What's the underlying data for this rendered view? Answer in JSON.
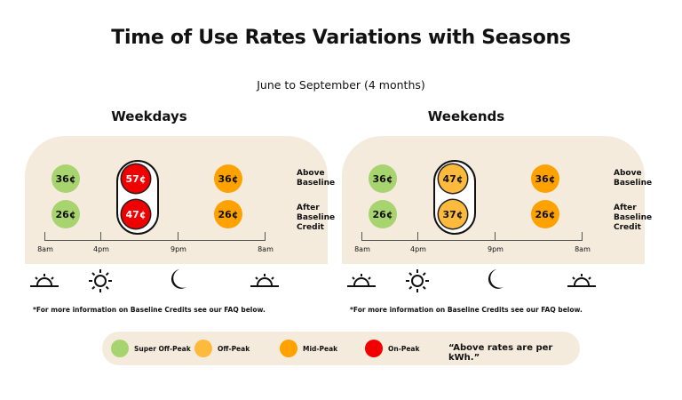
{
  "title": "Time of Use Rates Variations with Seasons",
  "subtitle": "June to September (4 months)",
  "colors": {
    "super_off_peak": "#A8D470",
    "off_peak": "#FDBA3C",
    "mid_peak": "#FFA200",
    "on_peak": "#F00000",
    "panel_bg": "#F5EBDD"
  },
  "row_labels": {
    "above": "Above Baseline",
    "after": "After Baseline Credit"
  },
  "panels": [
    {
      "title": "Weekdays",
      "rates": [
        {
          "period": "super_off_peak",
          "above": "36¢",
          "after": "26¢"
        },
        {
          "period": "on_peak",
          "above": "57¢",
          "after": "47¢"
        },
        {
          "period": "mid_peak",
          "above": "36¢",
          "after": "26¢"
        }
      ],
      "times": [
        "8am",
        "4pm",
        "9pm",
        "8am"
      ],
      "icons": [
        "sunrise-icon",
        "sun-icon",
        "moon-icon",
        "sunrise-icon"
      ],
      "note": "*For more information on Baseline Credits see our FAQ below."
    },
    {
      "title": "Weekends",
      "rates": [
        {
          "period": "super_off_peak",
          "above": "36¢",
          "after": "26¢"
        },
        {
          "period": "off_peak",
          "above": "47¢",
          "after": "37¢"
        },
        {
          "period": "mid_peak",
          "above": "36¢",
          "after": "26¢"
        }
      ],
      "times": [
        "8am",
        "4pm",
        "9pm",
        "8am"
      ],
      "icons": [
        "sunrise-icon",
        "sun-icon",
        "moon-icon",
        "sunrise-icon"
      ],
      "note": "*For more information on Baseline Credits see our FAQ below."
    }
  ],
  "legend": {
    "items": [
      {
        "label": "Super Off-Peak",
        "key": "super_off_peak"
      },
      {
        "label": "Off-Peak",
        "key": "off_peak"
      },
      {
        "label": "Mid-Peak",
        "key": "mid_peak"
      },
      {
        "label": "On-Peak",
        "key": "on_peak"
      }
    ],
    "note": "“Above rates are per kWh.”"
  }
}
